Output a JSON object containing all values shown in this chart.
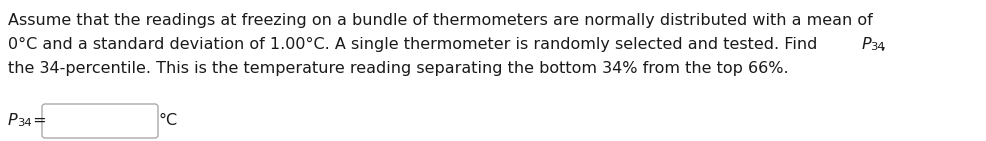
{
  "line1": "Assume that the readings at freezing on a bundle of thermometers are normally distributed with a mean of",
  "line2_main": "0°C and a standard deviation of 1.00°C. A single thermometer is randomly selected and tested. Find ",
  "line2_P": "P",
  "line2_sub": "34",
  "line2_comma": ",",
  "line3": "the 34-percentile. This is the temperature reading separating the bottom 34% from the top 66%.",
  "label_P": "P",
  "label_sub": "34",
  "label_eq": " =",
  "label_unit": "°C",
  "text_color": "#1a1a1a",
  "bg_color": "#ffffff",
  "font_size": 11.5,
  "font_family": "DejaVu Sans"
}
